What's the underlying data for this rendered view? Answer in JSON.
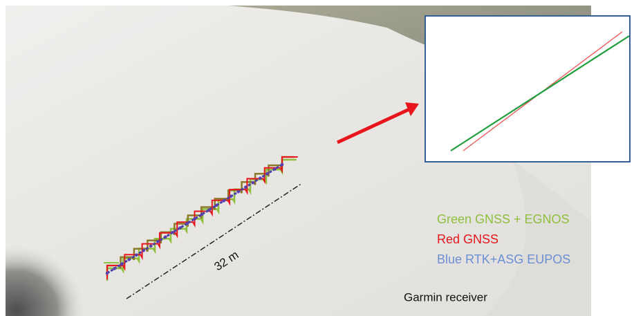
{
  "annotations": {
    "distance": "32 m"
  },
  "legend": [
    {
      "label": "Green GNSS + EGNOS",
      "color": "#8fbf3f"
    },
    {
      "label": "Red GNSS",
      "color": "#e8161c"
    },
    {
      "label": "Blue RTK+ASG EUPOS",
      "color": "#6a8fd4"
    }
  ],
  "caption": "Garmin receiver"
}
